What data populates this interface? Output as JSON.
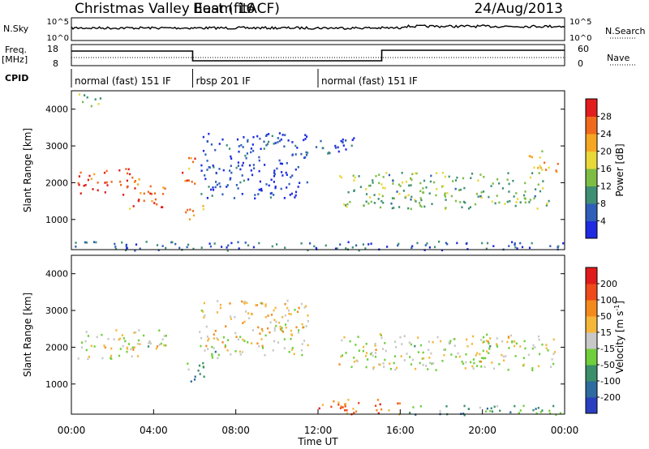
{
  "header": {
    "title": "Christmas Valley East (fitACF)",
    "beam": "Beam 16",
    "date": "24/Aug/2013"
  },
  "top_panels": {
    "nsky_label": "N.Sky",
    "nsky_ticks": [
      "10^5",
      "10^0"
    ],
    "nsearch_label": "N.Search",
    "nsearch_ticks": [
      "10^5",
      "10^0"
    ],
    "freq_label": "Freq.",
    "freq_unit": "[MHz]",
    "freq_ticks": [
      "18",
      "8"
    ],
    "nave_label": "Nave",
    "nave_ticks": [
      "60",
      "0"
    ],
    "cpid_label": "CPID",
    "cpid_segments": [
      {
        "label": "normal (fast) 151 IF",
        "start": 0.0,
        "end": 5.9
      },
      {
        "label": "rbsp 201 IF",
        "start": 5.9,
        "end": 12.0
      },
      {
        "label": "normal (fast) 151 IF",
        "start": 12.0,
        "end": 24.0
      }
    ]
  },
  "chart_data": [
    {
      "type": "heatmap",
      "name": "power",
      "ylabel": "Slant Range [km]",
      "xlim": [
        0,
        24
      ],
      "ylim": [
        180,
        4500
      ],
      "yticks": [
        1000,
        2000,
        3000,
        4000
      ],
      "colorbar": {
        "label": "Power [dB]",
        "ticks": [
          "4",
          "8",
          "12",
          "16",
          "20",
          "24",
          "28"
        ],
        "colors": [
          "#1e2be0",
          "#2f5fb8",
          "#3f8f74",
          "#7dbd44",
          "#e8d83a",
          "#f5a623",
          "#f06a1e",
          "#e11d1d"
        ]
      },
      "regions": [
        {
          "t0": 0.3,
          "t1": 2.8,
          "r0": 1700,
          "r1": 2400,
          "level": 0.9
        },
        {
          "t0": 2.8,
          "t1": 3.6,
          "r0": 1300,
          "r1": 2200,
          "level": 0.78
        },
        {
          "t0": 3.6,
          "t1": 4.6,
          "r0": 1350,
          "r1": 2100,
          "level": 0.8
        },
        {
          "t0": 5.3,
          "t1": 6.1,
          "r0": 1950,
          "r1": 2700,
          "level": 0.78
        },
        {
          "t0": 5.5,
          "t1": 6.6,
          "r0": 1000,
          "r1": 1400,
          "level": 0.72
        },
        {
          "t0": 6.2,
          "t1": 11.5,
          "r0": 1600,
          "r1": 3400,
          "level": 0.12
        },
        {
          "t0": 11.5,
          "t1": 13.8,
          "r0": 2800,
          "r1": 3300,
          "level": 0.15
        },
        {
          "t0": 13.0,
          "t1": 23.2,
          "r0": 1300,
          "r1": 2300,
          "level": 0.4
        },
        {
          "t0": 22.2,
          "t1": 23.7,
          "r0": 2300,
          "r1": 2900,
          "level": 0.65
        },
        {
          "t0": 0.3,
          "t1": 1.5,
          "r0": 4100,
          "r1": 4450,
          "level": 0.45
        },
        {
          "t0": 0.0,
          "t1": 24.0,
          "r0": 180,
          "r1": 430,
          "level": 0.2
        }
      ]
    },
    {
      "type": "heatmap",
      "name": "velocity",
      "ylabel": "Slant Range [km]",
      "xlabel": "Time UT",
      "xlim": [
        0,
        24
      ],
      "ylim": [
        180,
        4500
      ],
      "xticks": [
        "00:00",
        "04:00",
        "08:00",
        "12:00",
        "16:00",
        "20:00",
        "00:00"
      ],
      "yticks": [
        1000,
        2000,
        3000,
        4000
      ],
      "colorbar": {
        "label": "Velocity [m s",
        "unit_exponent": "-1",
        "unit_close": "]",
        "ticks": [
          "200",
          "100",
          "50",
          "15",
          "-15",
          "-50",
          "-100",
          "-200"
        ],
        "colors": [
          "#2a3fbf",
          "#2e6b9e",
          "#3b8f6a",
          "#6fcf3c",
          "#c8c8c8",
          "#f5b73a",
          "#f38a1e",
          "#ee4a1b",
          "#e01b1b"
        ]
      },
      "regions": [
        {
          "t0": 0.3,
          "t1": 4.6,
          "r0": 1700,
          "r1": 2500,
          "level": 0.5
        },
        {
          "t0": 5.5,
          "t1": 6.6,
          "r0": 1000,
          "r1": 1600,
          "level": 0.3
        },
        {
          "t0": 6.6,
          "t1": 7.4,
          "r0": 1700,
          "r1": 2100,
          "level": 0.3
        },
        {
          "t0": 6.2,
          "t1": 11.5,
          "r0": 1800,
          "r1": 3300,
          "level": 0.55
        },
        {
          "t0": 13.0,
          "t1": 23.5,
          "r0": 1400,
          "r1": 2400,
          "level": 0.5
        },
        {
          "t0": 12.0,
          "t1": 16.0,
          "r0": 180,
          "r1": 600,
          "level": 0.75
        },
        {
          "t0": 16.0,
          "t1": 24.0,
          "r0": 180,
          "r1": 450,
          "level": 0.3
        }
      ]
    }
  ]
}
